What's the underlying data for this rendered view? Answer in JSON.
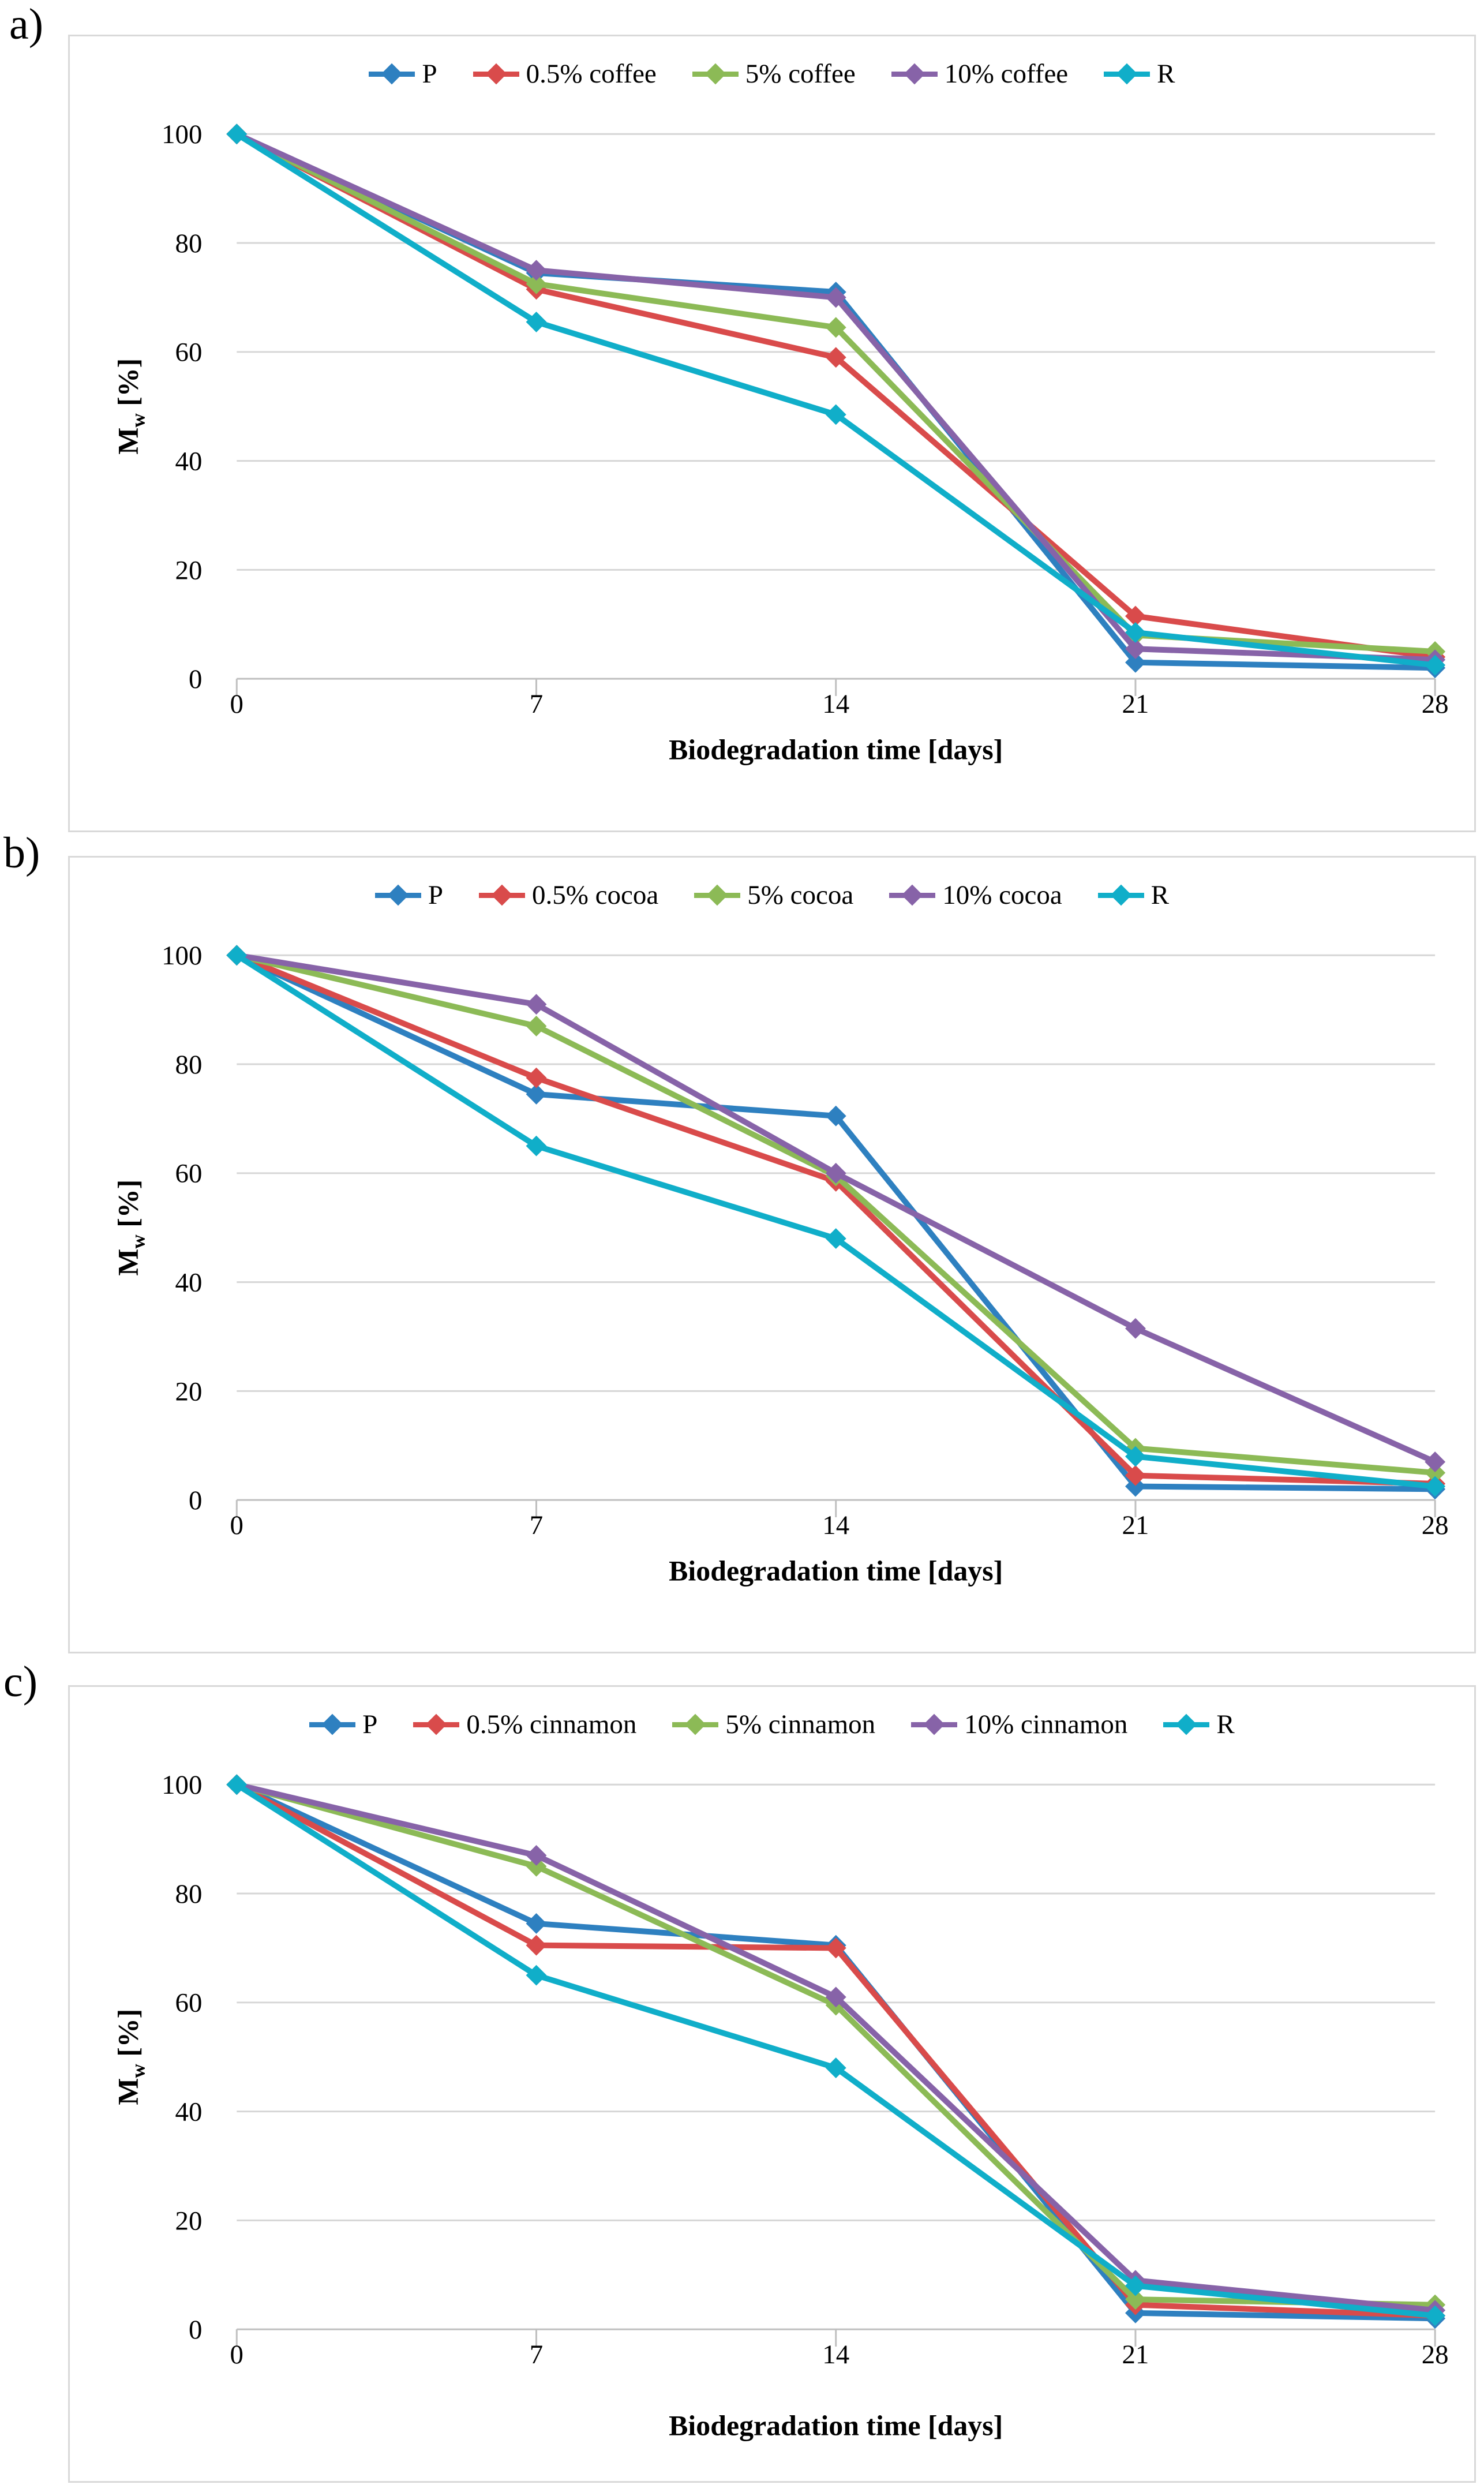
{
  "figure": {
    "panel_letters": [
      "a)",
      "b)",
      "c)"
    ]
  },
  "axes": {
    "x_label": "Biodegradation time [days]",
    "y_label_main": "M",
    "y_label_sub": "w",
    "y_label_unit": " [%]",
    "x_ticks": [
      "0",
      "7",
      "14",
      "21",
      "28"
    ],
    "y_ticks": [
      0,
      20,
      40,
      60,
      80,
      100
    ]
  },
  "colors": {
    "p_blue": "#2E80C0",
    "pct05_red": "#D94B4B",
    "pct5_green": "#8CBA56",
    "pct10_purple": "#8763A8",
    "r_cyan": "#10AEC9",
    "gridline": "#D6D6D6",
    "axis_line": "#BFBFBF",
    "panel_border": "#D9D9D9"
  },
  "chart_data": [
    {
      "panel": "a)",
      "type": "line",
      "title": "",
      "x": [
        0,
        7,
        14,
        21,
        28
      ],
      "xlabel": "Biodegradation time [days]",
      "ylabel": "Mw [%]",
      "ylim": [
        0,
        100
      ],
      "yticks": [
        0,
        20,
        40,
        60,
        80,
        100
      ],
      "grid": true,
      "legend_position": "top",
      "marker": "diamond",
      "series": [
        {
          "name": "P",
          "color": "#2E80C0",
          "values": [
            100,
            74.5,
            71,
            3,
            2
          ]
        },
        {
          "name": "0.5% coffee",
          "color": "#D94B4B",
          "values": [
            100,
            71.5,
            59,
            11.5,
            4
          ]
        },
        {
          "name": "5% coffee",
          "color": "#8CBA56",
          "values": [
            100,
            72.5,
            64.5,
            8,
            5
          ]
        },
        {
          "name": "10% coffee",
          "color": "#8763A8",
          "values": [
            100,
            75,
            70,
            5.5,
            3.5
          ]
        },
        {
          "name": "R",
          "color": "#10AEC9",
          "values": [
            100,
            65.5,
            48.5,
            8.5,
            2.5
          ]
        }
      ]
    },
    {
      "panel": "b)",
      "type": "line",
      "title": "",
      "x": [
        0,
        7,
        14,
        21,
        28
      ],
      "xlabel": "Biodegradation time [days]",
      "ylabel": "Mw [%]",
      "ylim": [
        0,
        100
      ],
      "yticks": [
        0,
        20,
        40,
        60,
        80,
        100
      ],
      "grid": true,
      "legend_position": "top",
      "marker": "diamond",
      "series": [
        {
          "name": "P",
          "color": "#2E80C0",
          "values": [
            100,
            74.5,
            70.5,
            2.5,
            2
          ]
        },
        {
          "name": "0.5% cocoa",
          "color": "#D94B4B",
          "values": [
            100,
            77.5,
            58.5,
            4.5,
            3
          ]
        },
        {
          "name": "5% cocoa",
          "color": "#8CBA56",
          "values": [
            100,
            87,
            59.5,
            9.5,
            5
          ]
        },
        {
          "name": "10% cocoa",
          "color": "#8763A8",
          "values": [
            100,
            91,
            60,
            31.5,
            7
          ]
        },
        {
          "name": "R",
          "color": "#10AEC9",
          "values": [
            100,
            65,
            48,
            8,
            2.5
          ]
        }
      ]
    },
    {
      "panel": "c)",
      "type": "line",
      "title": "",
      "x": [
        0,
        7,
        14,
        21,
        28
      ],
      "xlabel": "Biodegradation time [days]",
      "ylabel": "Mw [%]",
      "ylim": [
        0,
        100
      ],
      "yticks": [
        0,
        20,
        40,
        60,
        80,
        100
      ],
      "grid": true,
      "legend_position": "top",
      "marker": "diamond",
      "series": [
        {
          "name": "P",
          "color": "#2E80C0",
          "values": [
            100,
            74.5,
            70.5,
            3,
            2
          ]
        },
        {
          "name": "0.5% cinnamon",
          "color": "#D94B4B",
          "values": [
            100,
            70.5,
            70,
            4.5,
            2.5
          ]
        },
        {
          "name": "5% cinnamon",
          "color": "#8CBA56",
          "values": [
            100,
            85,
            59.5,
            5.5,
            4.5
          ]
        },
        {
          "name": "10% cinnamon",
          "color": "#8763A8",
          "values": [
            100,
            87,
            61,
            9,
            3.5
          ]
        },
        {
          "name": "R",
          "color": "#10AEC9",
          "values": [
            100,
            65,
            48,
            8,
            2.5
          ]
        }
      ]
    }
  ]
}
